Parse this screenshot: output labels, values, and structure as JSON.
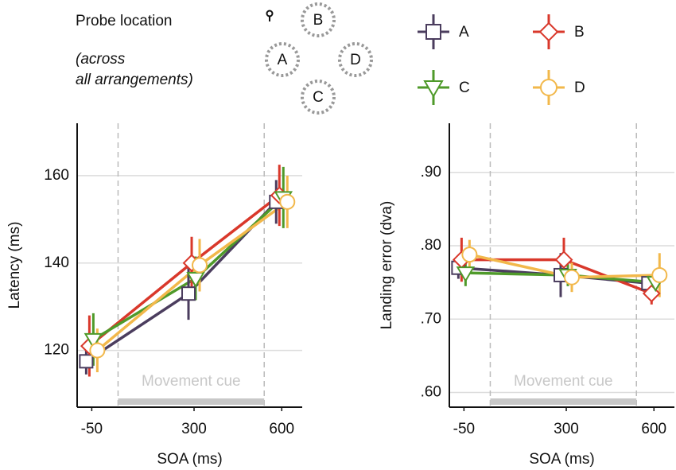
{
  "legend": {
    "title": "Probe location",
    "note": [
      "(across",
      "all arrangements)"
    ]
  },
  "chart_data": [
    {
      "type": "line",
      "xlabel": "SOA (ms)",
      "ylabel": "Latency (ms)",
      "x": [
        -50,
        300,
        600
      ],
      "xlim": [
        -100,
        670
      ],
      "xticks": [
        -50,
        300,
        600
      ],
      "ylim": [
        107,
        172
      ],
      "yticks": [
        120,
        140,
        160
      ],
      "grid": true,
      "annotation": {
        "text": "Movement cue",
        "x": [
          40,
          540
        ]
      },
      "series": [
        {
          "name": "A",
          "color": "#4b3d5e",
          "marker": "square",
          "values": [
            117.5,
            133,
            154
          ],
          "errors": [
            3,
            6,
            5
          ]
        },
        {
          "name": "B",
          "color": "#d9382b",
          "marker": "diamond",
          "values": [
            121,
            140,
            155.5
          ],
          "errors": [
            7,
            6,
            7
          ]
        },
        {
          "name": "C",
          "color": "#4f9a2a",
          "marker": "triangle-down",
          "values": [
            122.5,
            136.5,
            155
          ],
          "errors": [
            6,
            5,
            7
          ]
        },
        {
          "name": "D",
          "color": "#f2b84b",
          "marker": "circle",
          "values": [
            120,
            139.5,
            154
          ],
          "errors": [
            5,
            6,
            6
          ]
        }
      ]
    },
    {
      "type": "line",
      "xlabel": "SOA (ms)",
      "ylabel": "Landing error (dva)",
      "x": [
        -50,
        300,
        600
      ],
      "xlim": [
        -100,
        670
      ],
      "xticks": [
        -50,
        300,
        600
      ],
      "ylim": [
        0.58,
        0.967
      ],
      "yticks": [
        {
          "value": 0.6,
          "label": ".60"
        },
        {
          "value": 0.7,
          "label": ".70"
        },
        {
          "value": 0.8,
          "label": ".80"
        },
        {
          "value": 0.9,
          "label": ".90"
        }
      ],
      "grid": true,
      "annotation": {
        "text": "Movement cue",
        "x": [
          40,
          540
        ]
      },
      "series": [
        {
          "name": "A",
          "color": "#4b3d5e",
          "marker": "square",
          "values": [
            0.77,
            0.76,
            0.749
          ],
          "errors": [
            0.015,
            0.03,
            0.01
          ]
        },
        {
          "name": "B",
          "color": "#d9382b",
          "marker": "diamond",
          "values": [
            0.781,
            0.781,
            0.735
          ],
          "errors": [
            0.03,
            0.03,
            0.015
          ]
        },
        {
          "name": "C",
          "color": "#4f9a2a",
          "marker": "triangle-down",
          "values": [
            0.763,
            0.76,
            0.75
          ],
          "errors": [
            0.018,
            0.015,
            0.015
          ]
        },
        {
          "name": "D",
          "color": "#f2b84b",
          "marker": "circle",
          "values": [
            0.788,
            0.757,
            0.76
          ],
          "errors": [
            0.02,
            0.02,
            0.03
          ]
        }
      ]
    }
  ]
}
